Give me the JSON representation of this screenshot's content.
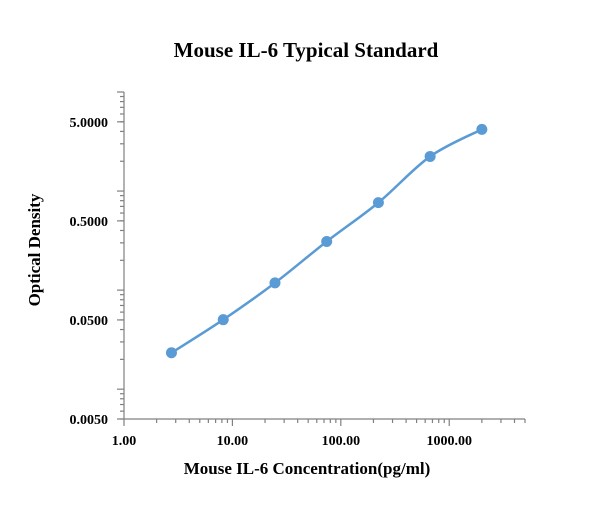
{
  "chart_data": {
    "type": "line",
    "title": "Mouse IL-6 Typical Standard",
    "xlabel": "Mouse IL-6 Concentration(pg/ml)",
    "ylabel": "Optical Density",
    "x_scale": "log",
    "y_scale": "log",
    "xlim": [
      1,
      5000
    ],
    "ylim": [
      0.005,
      10
    ],
    "x_tick_values": [
      1,
      10,
      100,
      1000
    ],
    "x_tick_labels": [
      "1.00",
      "10.00",
      "100.00",
      "1000.00"
    ],
    "y_tick_values": [
      0.005,
      0.05,
      0.5,
      5
    ],
    "y_tick_labels": [
      "0.0050",
      "0.0500",
      "0.5000",
      "5.0000"
    ],
    "grid": false,
    "legend": "none",
    "series": [
      {
        "x": [
          2.74,
          8.23,
          24.7,
          74.1,
          222.2,
          666.7,
          2000
        ],
        "y": [
          0.0233,
          0.0503,
          0.1183,
          0.3097,
          0.7647,
          2.236,
          4.198
        ],
        "color": "#5B9BD5"
      }
    ]
  }
}
